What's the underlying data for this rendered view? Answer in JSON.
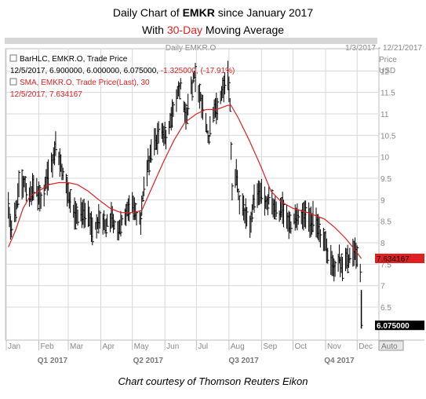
{
  "header": {
    "title_prefix": "Daily Chart of ",
    "ticker": "EMKR",
    "title_suffix": " since January 2017",
    "subtitle_prefix": "With ",
    "subtitle_highlight": "30-Day",
    "subtitle_suffix": " Moving Average"
  },
  "footer": {
    "text": "Chart courtesy of Thomson Reuters Eikon"
  },
  "panel": {
    "name": "Daily EMKR.O",
    "date_range": "1/3/2017 - 12/21/2017",
    "price_label": "Price",
    "currency_label": "USD",
    "auto_label": "Auto"
  },
  "legend": {
    "bar_series": "BarHLC, EMKR.O, Trade Price",
    "bar_values_main": "12/5/2017, 6.900000, 6.000000, 6.075000, ",
    "bar_values_change": "-1.325000, (-17.91%)",
    "sma_series": "SMA, EMKR.O, Trade Price(Last),  30",
    "sma_values": "12/5/2017, 7.634167"
  },
  "colors": {
    "bars": "#000000",
    "sma": "#e02020",
    "change_negative": "#e02020",
    "grid": "#d8d8d8",
    "axis_text": "#888888",
    "sma_tag_bg": "#e02020",
    "price_tag_bg": "#000000"
  },
  "chart_data": {
    "type": "bar",
    "ylabel": "Price USD",
    "ylim": [
      5.75,
      12.5
    ],
    "yticks": [
      6.5,
      7,
      7.5,
      8,
      8.5,
      9,
      9.5,
      10,
      10.5,
      11,
      11.5,
      12
    ],
    "ytick_labels": [
      "6.5",
      "7",
      "7.5",
      "8",
      "8.5",
      "9",
      "9.5",
      "10",
      "10.5",
      "11",
      "11.5",
      "12"
    ],
    "x_range": [
      "2017-01-01",
      "2017-12-21"
    ],
    "month_ticks": [
      {
        "label": "Jan",
        "date": "2017-01-01"
      },
      {
        "label": "Feb",
        "date": "2017-02-01"
      },
      {
        "label": "Mar",
        "date": "2017-03-01"
      },
      {
        "label": "Apr",
        "date": "2017-04-01"
      },
      {
        "label": "May",
        "date": "2017-05-01"
      },
      {
        "label": "Jun",
        "date": "2017-06-01"
      },
      {
        "label": "Jul",
        "date": "2017-07-01"
      },
      {
        "label": "Aug",
        "date": "2017-08-01"
      },
      {
        "label": "Sep",
        "date": "2017-09-01"
      },
      {
        "label": "Oct",
        "date": "2017-10-01"
      },
      {
        "label": "Nov",
        "date": "2017-11-01"
      },
      {
        "label": "Dec",
        "date": "2017-12-01"
      }
    ],
    "quarters": [
      {
        "label": "Q1 2017",
        "date": "2017-02-14"
      },
      {
        "label": "Q2 2017",
        "date": "2017-05-16"
      },
      {
        "label": "Q3 2017",
        "date": "2017-08-15"
      },
      {
        "label": "Q4 2017",
        "date": "2017-11-14"
      }
    ],
    "price_path": [
      [
        "2017-01-03",
        8.8
      ],
      [
        "2017-01-06",
        8.3
      ],
      [
        "2017-01-10",
        8.7
      ],
      [
        "2017-01-13",
        9.3
      ],
      [
        "2017-01-18",
        9.4
      ],
      [
        "2017-01-23",
        9.1
      ],
      [
        "2017-01-27",
        9.3
      ],
      [
        "2017-02-02",
        9.0
      ],
      [
        "2017-02-07",
        9.3
      ],
      [
        "2017-02-10",
        9.6
      ],
      [
        "2017-02-14",
        9.9
      ],
      [
        "2017-02-17",
        10.3
      ],
      [
        "2017-02-22",
        9.8
      ],
      [
        "2017-02-27",
        9.3
      ],
      [
        "2017-03-03",
        8.9
      ],
      [
        "2017-03-08",
        8.6
      ],
      [
        "2017-03-14",
        8.7
      ],
      [
        "2017-03-20",
        8.6
      ],
      [
        "2017-03-24",
        8.3
      ],
      [
        "2017-03-30",
        8.5
      ],
      [
        "2017-04-05",
        8.4
      ],
      [
        "2017-04-11",
        8.6
      ],
      [
        "2017-04-17",
        8.3
      ],
      [
        "2017-04-21",
        8.5
      ],
      [
        "2017-04-26",
        8.7
      ],
      [
        "2017-05-02",
        8.9
      ],
      [
        "2017-05-05",
        8.6
      ],
      [
        "2017-05-09",
        8.5
      ],
      [
        "2017-05-12",
        9.3
      ],
      [
        "2017-05-16",
        9.8
      ],
      [
        "2017-05-19",
        10.2
      ],
      [
        "2017-05-24",
        10.4
      ],
      [
        "2017-05-30",
        10.7
      ],
      [
        "2017-06-02",
        10.3
      ],
      [
        "2017-06-07",
        10.9
      ],
      [
        "2017-06-12",
        11.4
      ],
      [
        "2017-06-16",
        11.7
      ],
      [
        "2017-06-21",
        10.9
      ],
      [
        "2017-06-26",
        11.6
      ],
      [
        "2017-06-29",
        11.9
      ],
      [
        "2017-07-05",
        11.4
      ],
      [
        "2017-07-10",
        10.8
      ],
      [
        "2017-07-13",
        10.4
      ],
      [
        "2017-07-18",
        11.2
      ],
      [
        "2017-07-21",
        11.1
      ],
      [
        "2017-07-26",
        11.5
      ],
      [
        "2017-07-31",
        11.9
      ],
      [
        "2017-08-02",
        11.2
      ],
      [
        "2017-08-04",
        9.1
      ],
      [
        "2017-08-08",
        9.7
      ],
      [
        "2017-08-11",
        8.9
      ],
      [
        "2017-08-16",
        8.7
      ],
      [
        "2017-08-21",
        8.5
      ],
      [
        "2017-08-25",
        9.0
      ],
      [
        "2017-08-30",
        9.2
      ],
      [
        "2017-09-05",
        8.9
      ],
      [
        "2017-09-08",
        9.0
      ],
      [
        "2017-09-13",
        8.8
      ],
      [
        "2017-09-18",
        8.6
      ],
      [
        "2017-09-21",
        8.8
      ],
      [
        "2017-09-26",
        8.5
      ],
      [
        "2017-09-29",
        8.4
      ],
      [
        "2017-10-04",
        8.7
      ],
      [
        "2017-10-09",
        8.6
      ],
      [
        "2017-10-12",
        8.7
      ],
      [
        "2017-10-17",
        8.5
      ],
      [
        "2017-10-20",
        8.6
      ],
      [
        "2017-10-25",
        8.3
      ],
      [
        "2017-10-30",
        8.1
      ],
      [
        "2017-11-02",
        7.8
      ],
      [
        "2017-11-07",
        7.6
      ],
      [
        "2017-11-09",
        7.3
      ],
      [
        "2017-11-14",
        7.6
      ],
      [
        "2017-11-17",
        7.5
      ],
      [
        "2017-11-22",
        7.6
      ],
      [
        "2017-11-27",
        7.7
      ],
      [
        "2017-11-29",
        7.9
      ],
      [
        "2017-12-01",
        7.6
      ],
      [
        "2017-12-04",
        7.4
      ]
    ],
    "last_bar": {
      "date": "2017-12-05",
      "high": 6.9,
      "low": 6.0,
      "close": 6.075
    },
    "series": [
      {
        "name": "SMA, EMKR.O, Trade Price(Last), 30",
        "points": [
          [
            "2017-01-03",
            7.9
          ],
          [
            "2017-01-10",
            8.3
          ],
          [
            "2017-01-17",
            8.8
          ],
          [
            "2017-01-24",
            9.1
          ],
          [
            "2017-02-01",
            9.2
          ],
          [
            "2017-02-10",
            9.35
          ],
          [
            "2017-02-20",
            9.4
          ],
          [
            "2017-03-01",
            9.4
          ],
          [
            "2017-03-10",
            9.35
          ],
          [
            "2017-03-20",
            9.2
          ],
          [
            "2017-03-30",
            9.0
          ],
          [
            "2017-04-10",
            8.8
          ],
          [
            "2017-04-20",
            8.7
          ],
          [
            "2017-05-01",
            8.7
          ],
          [
            "2017-05-10",
            8.75
          ],
          [
            "2017-05-20",
            9.3
          ],
          [
            "2017-05-31",
            9.9
          ],
          [
            "2017-06-10",
            10.4
          ],
          [
            "2017-06-20",
            10.8
          ],
          [
            "2017-07-01",
            11.0
          ],
          [
            "2017-07-10",
            11.1
          ],
          [
            "2017-07-20",
            11.1
          ],
          [
            "2017-07-31",
            11.2
          ],
          [
            "2017-08-03",
            11.2
          ],
          [
            "2017-08-10",
            10.9
          ],
          [
            "2017-08-20",
            10.4
          ],
          [
            "2017-08-31",
            9.8
          ],
          [
            "2017-09-10",
            9.2
          ],
          [
            "2017-09-20",
            8.95
          ],
          [
            "2017-10-01",
            8.8
          ],
          [
            "2017-10-15",
            8.7
          ],
          [
            "2017-10-31",
            8.55
          ],
          [
            "2017-11-10",
            8.35
          ],
          [
            "2017-11-20",
            8.1
          ],
          [
            "2017-11-30",
            7.8
          ],
          [
            "2017-12-05",
            7.63
          ]
        ]
      }
    ],
    "last_values": {
      "close": "6.075000",
      "sma": "7.634167"
    }
  }
}
